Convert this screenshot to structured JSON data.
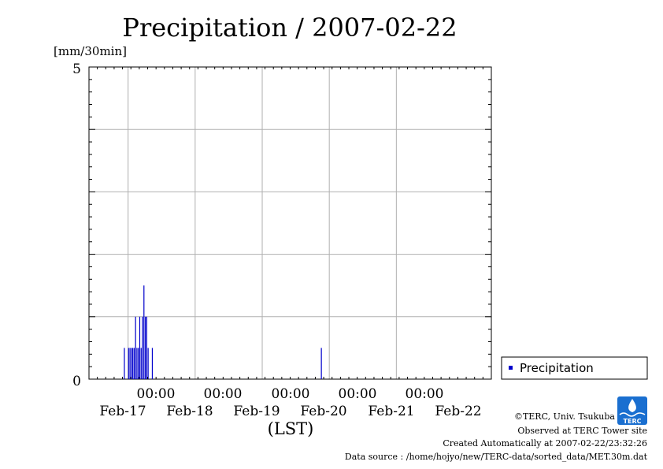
{
  "chart_data": {
    "type": "bar",
    "title": "Precipitation / 2007-02-22",
    "ylabel": "[mm/30min]",
    "xlabel": "(LST)",
    "ylim": [
      0,
      5
    ],
    "y_ticks": [
      "0",
      "5"
    ],
    "x_time_labels": [
      "00:00",
      "00:00",
      "00:00",
      "00:00",
      "00:00"
    ],
    "x_date_labels": [
      "Feb-17",
      "Feb-18",
      "Feb-19",
      "Feb-20",
      "Feb-21",
      "Feb-22"
    ],
    "x_range": [
      "2007-02-16 10:00",
      "2007-02-22 10:00"
    ],
    "grid": true,
    "legend_position": "right",
    "series": [
      {
        "name": "Precipitation",
        "color": "#0000cc",
        "points": [
          {
            "x": "2007-02-16 22:30",
            "y": 0.5
          },
          {
            "x": "2007-02-17 00:00",
            "y": 0.5
          },
          {
            "x": "2007-02-17 00:30",
            "y": 0.5
          },
          {
            "x": "2007-02-17 01:00",
            "y": 0.5
          },
          {
            "x": "2007-02-17 01:30",
            "y": 0.5
          },
          {
            "x": "2007-02-17 02:00",
            "y": 0.5
          },
          {
            "x": "2007-02-17 02:30",
            "y": 1.0
          },
          {
            "x": "2007-02-17 03:00",
            "y": 0.5
          },
          {
            "x": "2007-02-17 03:30",
            "y": 0.5
          },
          {
            "x": "2007-02-17 04:00",
            "y": 1.0
          },
          {
            "x": "2007-02-17 04:30",
            "y": 0.5
          },
          {
            "x": "2007-02-17 05:00",
            "y": 1.0
          },
          {
            "x": "2007-02-17 05:30",
            "y": 1.5
          },
          {
            "x": "2007-02-17 06:00",
            "y": 1.0
          },
          {
            "x": "2007-02-17 06:30",
            "y": 1.0
          },
          {
            "x": "2007-02-17 07:00",
            "y": 0.5
          },
          {
            "x": "2007-02-17 08:30",
            "y": 0.5
          },
          {
            "x": "2007-02-19 21:00",
            "y": 0.5
          }
        ]
      }
    ]
  },
  "footer": {
    "copyright": "©TERC, Univ. Tsukuba",
    "site": "Observed at TERC Tower site",
    "created": "Created Automatically at 2007-02-22/23:32:26",
    "source": "Data source : /home/hojyo/new/TERC-data/sorted_data/MET.30m.dat"
  },
  "logo": {
    "text": "TERC",
    "color": "#1a6fd0"
  }
}
